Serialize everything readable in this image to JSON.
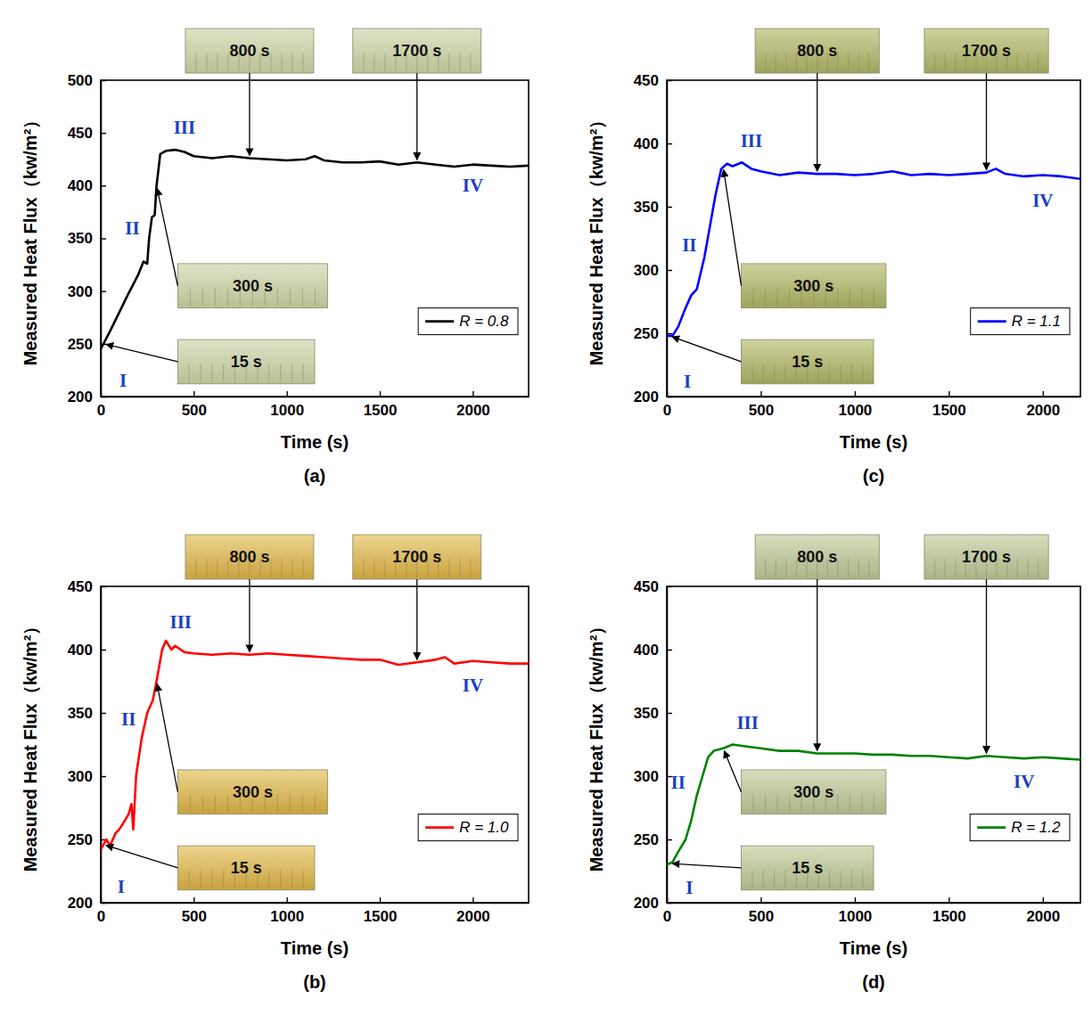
{
  "chart_data": [
    {
      "type": "line",
      "title": "(a)",
      "xlabel": "Time (s)",
      "ylabel": "Measured Heat Flux（kw/m²）",
      "xlim": [
        0,
        2300
      ],
      "ylim": [
        200,
        500
      ],
      "xticks": [
        0,
        500,
        1000,
        1500,
        2000
      ],
      "yticks": [
        200,
        250,
        300,
        350,
        400,
        450,
        500
      ],
      "legend": "lower right",
      "x": [
        0,
        50,
        100,
        150,
        200,
        230,
        250,
        260,
        275,
        290,
        300,
        320,
        350,
        400,
        450,
        500,
        600,
        700,
        800,
        900,
        1000,
        1100,
        1150,
        1200,
        1300,
        1400,
        1500,
        1600,
        1700,
        1800,
        1900,
        2000,
        2100,
        2200,
        2300
      ],
      "series": [
        {
          "name": "R = 0.8",
          "color": "#000000",
          "values": [
            245,
            262,
            280,
            298,
            315,
            328,
            326,
            350,
            370,
            372,
            400,
            430,
            433,
            434,
            432,
            428,
            426,
            428,
            426,
            425,
            424,
            425,
            428,
            424,
            422,
            422,
            423,
            420,
            422,
            420,
            418,
            420,
            419,
            418,
            419
          ]
        }
      ],
      "phases": [
        {
          "label": "I",
          "x": 120,
          "y": 215
        },
        {
          "label": "II",
          "x": 170,
          "y": 360
        },
        {
          "label": "III",
          "x": 450,
          "y": 455
        },
        {
          "label": "IV",
          "x": 2000,
          "y": 400
        }
      ],
      "photos": [
        {
          "time": 15,
          "label": "15 s"
        },
        {
          "time": 300,
          "label": "300 s"
        },
        {
          "time": 800,
          "label": "800 s"
        },
        {
          "time": 1700,
          "label": "1700 s"
        }
      ]
    },
    {
      "type": "line",
      "title": "(b)",
      "xlabel": "Time (s)",
      "ylabel": "Measured Heat Flux（kw/m²）",
      "xlim": [
        0,
        2300
      ],
      "ylim": [
        200,
        450
      ],
      "xticks": [
        0,
        500,
        1000,
        1500,
        2000
      ],
      "yticks": [
        200,
        250,
        300,
        350,
        400,
        450
      ],
      "legend": "lower right",
      "x": [
        0,
        30,
        50,
        80,
        100,
        130,
        150,
        165,
        175,
        190,
        220,
        250,
        280,
        300,
        330,
        350,
        380,
        400,
        450,
        500,
        600,
        700,
        800,
        900,
        1000,
        1100,
        1200,
        1300,
        1400,
        1500,
        1600,
        1700,
        1800,
        1850,
        1900,
        2000,
        2100,
        2200,
        2300
      ],
      "series": [
        {
          "name": "R = 1.0",
          "color": "#ff0000",
          "values": [
            242,
            250,
            245,
            255,
            258,
            265,
            270,
            278,
            258,
            300,
            330,
            350,
            360,
            375,
            400,
            407,
            400,
            403,
            398,
            397,
            396,
            397,
            396,
            397,
            396,
            395,
            394,
            393,
            392,
            392,
            388,
            390,
            392,
            394,
            389,
            391,
            390,
            389,
            389
          ]
        }
      ],
      "phases": [
        {
          "label": "I",
          "x": 110,
          "y": 213
        },
        {
          "label": "II",
          "x": 150,
          "y": 345
        },
        {
          "label": "III",
          "x": 430,
          "y": 422
        },
        {
          "label": "IV",
          "x": 2000,
          "y": 372
        }
      ],
      "photos": [
        {
          "time": 15,
          "label": "15 s"
        },
        {
          "time": 300,
          "label": "300 s"
        },
        {
          "time": 800,
          "label": "800 s"
        },
        {
          "time": 1700,
          "label": "1700 s"
        }
      ]
    },
    {
      "type": "line",
      "title": "(c)",
      "xlabel": "Time (s)",
      "ylabel": "Measured Heat Flux（kw/m²）",
      "xlim": [
        0,
        2200
      ],
      "ylim": [
        200,
        450
      ],
      "xticks": [
        0,
        500,
        1000,
        1500,
        2000
      ],
      "yticks": [
        200,
        250,
        300,
        350,
        400,
        450
      ],
      "legend": "lower right",
      "x": [
        0,
        30,
        60,
        100,
        130,
        160,
        200,
        230,
        260,
        290,
        320,
        350,
        400,
        450,
        500,
        600,
        700,
        800,
        900,
        1000,
        1100,
        1200,
        1300,
        1400,
        1500,
        1600,
        1700,
        1750,
        1800,
        1900,
        2000,
        2100,
        2200
      ],
      "series": [
        {
          "name": "R = 1.1",
          "color": "#0000ff",
          "values": [
            248,
            248,
            255,
            270,
            280,
            285,
            310,
            335,
            360,
            380,
            384,
            382,
            385,
            380,
            378,
            375,
            377,
            376,
            376,
            375,
            376,
            378,
            375,
            376,
            375,
            376,
            377,
            380,
            376,
            374,
            375,
            374,
            372
          ]
        }
      ],
      "phases": [
        {
          "label": "I",
          "x": 110,
          "y": 212
        },
        {
          "label": "II",
          "x": 120,
          "y": 320
        },
        {
          "label": "III",
          "x": 450,
          "y": 402
        },
        {
          "label": "IV",
          "x": 2000,
          "y": 355
        }
      ],
      "photos": [
        {
          "time": 15,
          "label": "15 s"
        },
        {
          "time": 300,
          "label": "300 s"
        },
        {
          "time": 800,
          "label": "800 s"
        },
        {
          "time": 1700,
          "label": "1700 s"
        }
      ]
    },
    {
      "type": "line",
      "title": "(d)",
      "xlabel": "Time (s)",
      "ylabel": "Measured Heat Flux（kw/m²）",
      "xlim": [
        0,
        2200
      ],
      "ylim": [
        200,
        450
      ],
      "xticks": [
        0,
        500,
        1000,
        1500,
        2000
      ],
      "yticks": [
        200,
        250,
        300,
        350,
        400,
        450
      ],
      "legend": "lower right",
      "x": [
        0,
        30,
        60,
        100,
        130,
        160,
        190,
        220,
        250,
        300,
        350,
        400,
        500,
        600,
        700,
        800,
        900,
        1000,
        1100,
        1200,
        1300,
        1400,
        1500,
        1600,
        1700,
        1800,
        1900,
        2000,
        2100,
        2200
      ],
      "series": [
        {
          "name": "R = 1.2",
          "color": "#008000",
          "values": [
            230,
            232,
            240,
            250,
            265,
            285,
            300,
            315,
            320,
            322,
            325,
            324,
            322,
            320,
            320,
            318,
            318,
            318,
            317,
            317,
            316,
            316,
            315,
            314,
            316,
            315,
            314,
            315,
            314,
            313
          ]
        }
      ],
      "phases": [
        {
          "label": "I",
          "x": 120,
          "y": 212
        },
        {
          "label": "II",
          "x": 60,
          "y": 295
        },
        {
          "label": "III",
          "x": 430,
          "y": 342
        },
        {
          "label": "IV",
          "x": 1900,
          "y": 296
        }
      ],
      "photos": [
        {
          "time": 15,
          "label": "15 s"
        },
        {
          "time": 300,
          "label": "300 s"
        },
        {
          "time": 800,
          "label": "800 s"
        },
        {
          "time": 1700,
          "label": "1700 s"
        }
      ]
    }
  ]
}
